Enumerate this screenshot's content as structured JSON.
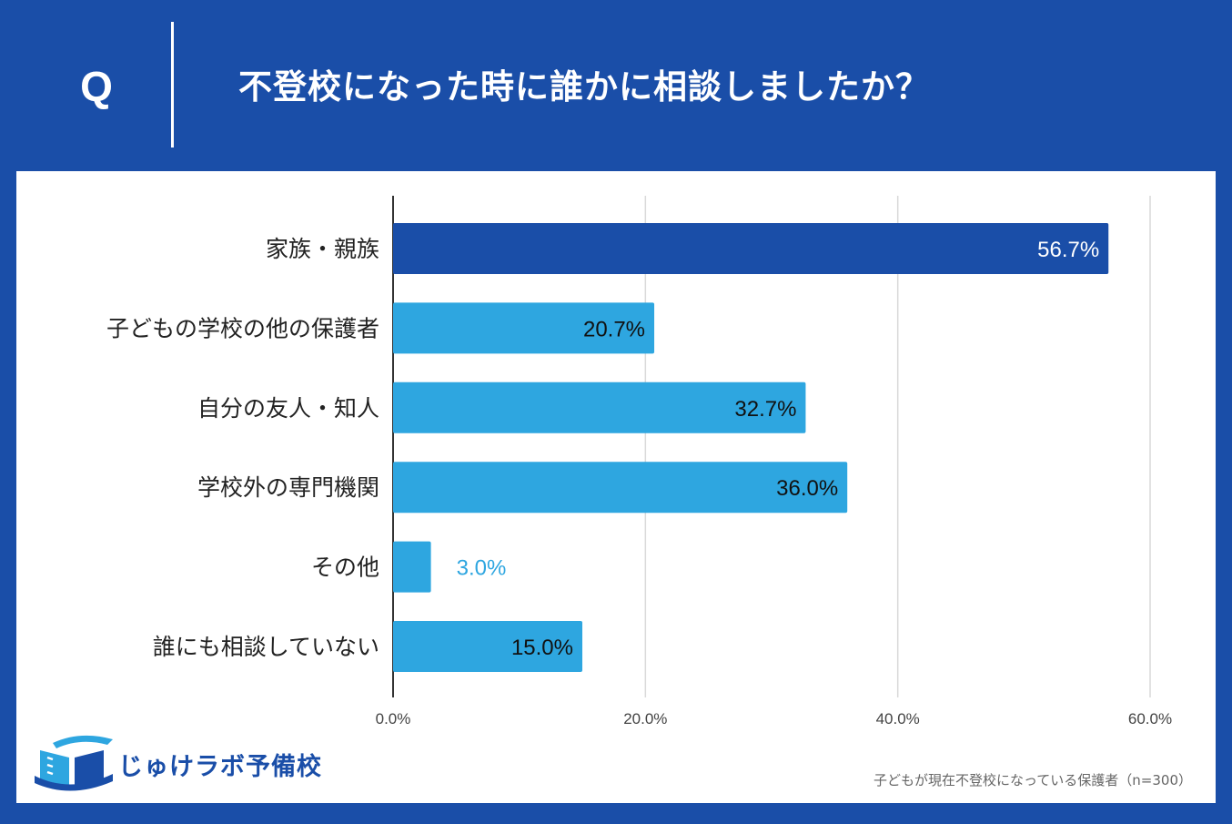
{
  "header": {
    "q_label": "Q",
    "title": "不登校になった時に誰かに相談しましたか？"
  },
  "colors": {
    "background": "#1a4ea8",
    "highlight_bar": "#1a4ea8",
    "bar": "#2ea6e0",
    "grid": "#d9d9d9",
    "axis": "#333333"
  },
  "chart_data": {
    "type": "bar",
    "orientation": "horizontal",
    "categories": [
      "家族・親族",
      "子どもの学校の他の保護者",
      "自分の友人・知人",
      "学校外の専門機関",
      "その他",
      "誰にも相談していない"
    ],
    "values": [
      56.7,
      20.7,
      32.7,
      36.0,
      3.0,
      15.0
    ],
    "value_labels": [
      "56.7%",
      "20.7%",
      "32.7%",
      "36.0%",
      "3.0%",
      "15.0%"
    ],
    "highlight_index": 0,
    "xlim": [
      0,
      60
    ],
    "xticks": [
      0,
      20,
      40,
      60
    ],
    "xtick_labels": [
      "0.0%",
      "20.0%",
      "40.0%",
      "60.0%"
    ],
    "grid": true,
    "legend": false
  },
  "logo": {
    "text": "じゅけラボ予備校",
    "icon": "open-book-logo-icon"
  },
  "footnote": "子どもが現在不登校になっている保護者（n=300）"
}
